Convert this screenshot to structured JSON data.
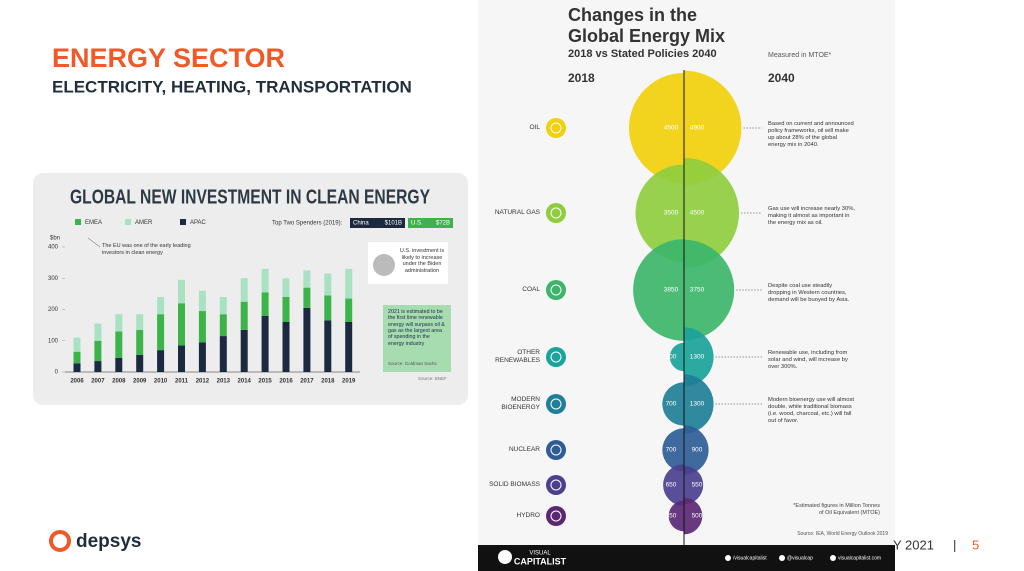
{
  "slide": {
    "title": "ENERGY SECTOR",
    "subtitle": "ELECTRICITY, HEATING, TRANSPORTATION",
    "logo": "depsys",
    "footer_date": "Y 2021",
    "footer_separator": "|",
    "page_number": "5"
  },
  "chart_data": [
    {
      "type": "bar",
      "stacked": true,
      "title": "GLOBAL NEW INVESTMENT IN CLEAN ENERGY",
      "y_label": "$bn",
      "categories": [
        "2006",
        "2007",
        "2008",
        "2009",
        "2010",
        "2011",
        "2012",
        "2013",
        "2014",
        "2015",
        "2016",
        "2017",
        "2018",
        "2019"
      ],
      "series": [
        {
          "name": "EMEA",
          "color": "#3cb44a",
          "values": [
            37,
            65,
            85,
            80,
            115,
            135,
            100,
            70,
            90,
            75,
            80,
            65,
            80,
            75
          ]
        },
        {
          "name": "AMER",
          "color": "#a9e2c2",
          "values": [
            45,
            55,
            55,
            50,
            55,
            75,
            65,
            55,
            75,
            75,
            60,
            55,
            70,
            95
          ]
        },
        {
          "name": "APAC",
          "color": "#1b2a41",
          "values": [
            28,
            35,
            45,
            55,
            70,
            85,
            95,
            115,
            135,
            180,
            160,
            205,
            165,
            160
          ]
        }
      ],
      "ylim": [
        0,
        400
      ],
      "yticks": [
        0,
        100,
        200,
        300,
        400
      ],
      "grid": false,
      "top_spenders": {
        "label": "Top Two Spenders (2019):",
        "items": [
          {
            "name": "China",
            "amount": "$101B"
          },
          {
            "name": "U.S.",
            "amount": "$72B"
          }
        ]
      },
      "annotations": [
        "The EU was one of the early leading investors in clean energy",
        "U.S. investment is likely to increase under the Biden administration",
        "2021 is estimated to be the first time renewable energy will surpass oil & gas as the largest area of spending in the energy industry"
      ],
      "annotation_source": "Source: Goldman Sachs",
      "source": "Source: BNEF"
    },
    {
      "type": "split-bubble",
      "title": "Changes in the Global Energy Mix",
      "subtitle": "2018 vs Stated Policies 2040",
      "unit_note": "Measured in MTOE*",
      "categories": [
        "OIL",
        "NATURAL GAS",
        "COAL",
        "OTHER RENEWABLES",
        "MODERN BIOENERGY",
        "NUCLEAR",
        "SOLID BIOMASS",
        "HYDRO"
      ],
      "colors": [
        "#f1d00c",
        "#8fcd3f",
        "#3cb56a",
        "#1aa39a",
        "#207f98",
        "#2e5d96",
        "#4b3f8f",
        "#5b2775"
      ],
      "series": [
        {
          "name": "2018",
          "values": [
            4500,
            3500,
            3850,
            300,
            700,
            700,
            650,
            350
          ]
        },
        {
          "name": "2040",
          "values": [
            4900,
            4500,
            3750,
            1300,
            1300,
            900,
            550,
            500
          ]
        }
      ],
      "notes": [
        "Based on current and announced policy frameworks, oil will make up about 28% of the global energy mix in 2040.",
        "Gas use will increase nearly 30%, making it almost as important in the energy mix as oil.",
        "Despite coal use steadily dropping in Western countries, demand will be buoyed by Asia.",
        "Renewable use, including from solar and wind, will increase by over 300%.",
        "Modern bioenergy use will almost double, while traditional biomass (i.e. wood, charcoal, etc.) will fall out of favor.",
        null,
        null,
        null
      ],
      "footnote": "*Estimated figures in Million Tonnes of Oil Equivalent (MTOE)",
      "source": "Source: IEA, World Energy Outlook 2019",
      "brand": [
        "VISUAL",
        "CAPITALIST"
      ],
      "social": [
        "/visualcapitalist",
        "@visualcap",
        "visualcapitalist.com"
      ]
    }
  ]
}
